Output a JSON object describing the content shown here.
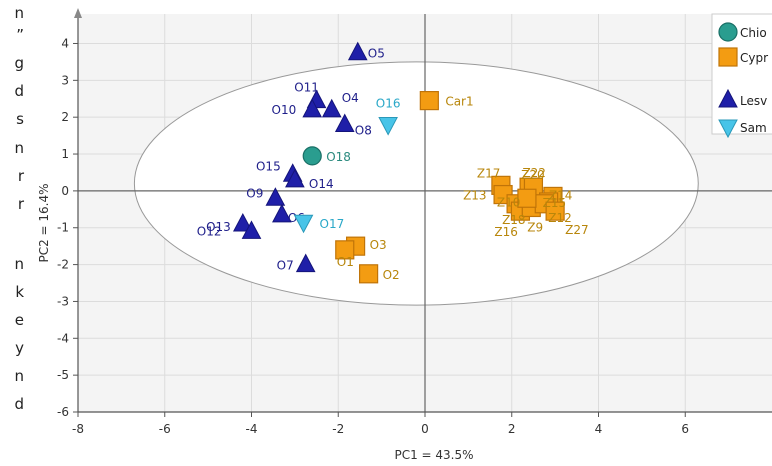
{
  "left_margin_text": [
    "n",
    "”",
    "g",
    "d",
    "s",
    "n",
    "r",
    "r",
    "n",
    "k",
    "e",
    "y",
    "n",
    "d"
  ],
  "chart_data": {
    "type": "scatter",
    "xlabel": "PC1 = 43.5%",
    "ylabel": "PC2 = 16.4%",
    "xlim": [
      -8,
      8
    ],
    "ylim": [
      -6,
      4.8
    ],
    "xticks": [
      -8,
      -6,
      -4,
      -2,
      0,
      2,
      4,
      6
    ],
    "yticks": [
      -6,
      -5,
      -4,
      -3,
      -2,
      -1,
      0,
      1,
      2,
      3,
      4
    ],
    "grid": true,
    "ellipse": {
      "cx": -0.2,
      "cy": 0.2,
      "rx": 6.5,
      "ry": 3.3
    },
    "legend": {
      "position": "top-right",
      "entries": [
        "Chio",
        "Cypr",
        "Lesv",
        "Sam"
      ]
    },
    "series": [
      {
        "name": "Chio",
        "marker": "circle",
        "color": "#2a9d8f",
        "label_color": "#2a8a7e",
        "points": [
          {
            "label": "O18",
            "x": -2.6,
            "y": 0.95
          }
        ]
      },
      {
        "name": "Cypr",
        "marker": "square",
        "color": "#f39c12",
        "label_color": "#b8860b",
        "points": [
          {
            "label": "Car1",
            "x": 0.1,
            "y": 2.45
          },
          {
            "label": "O3",
            "x": -1.6,
            "y": -1.5
          },
          {
            "label": "O1",
            "x": -1.85,
            "y": -1.6
          },
          {
            "label": "O2",
            "x": -1.3,
            "y": -2.25
          },
          {
            "label": "Z17",
            "x": 1.75,
            "y": 0.15
          },
          {
            "label": "Z20",
            "x": 2.4,
            "y": 0.1
          },
          {
            "label": "Z22",
            "x": 2.5,
            "y": 0.1
          },
          {
            "label": "Z14",
            "x": 2.95,
            "y": -0.15
          },
          {
            "label": "Z15",
            "x": 2.85,
            "y": -0.3
          },
          {
            "label": "Z13",
            "x": 1.8,
            "y": -0.1
          },
          {
            "label": "Z18",
            "x": 2.1,
            "y": -0.35
          },
          {
            "label": "Z16",
            "x": 2.2,
            "y": -0.55
          },
          {
            "label": "Z9",
            "x": 2.45,
            "y": -0.45
          },
          {
            "label": "Z12",
            "x": 2.75,
            "y": -0.35
          },
          {
            "label": "Z27",
            "x": 3.0,
            "y": -0.55
          },
          {
            "label": "Z10",
            "x": 2.35,
            "y": -0.2
          }
        ]
      },
      {
        "name": "Lesv",
        "marker": "triangle-up",
        "color": "#1f1fa8",
        "label_color": "#1f1f8a",
        "points": [
          {
            "label": "O5",
            "x": -1.55,
            "y": 3.75
          },
          {
            "label": "O11",
            "x": -2.5,
            "y": 2.45
          },
          {
            "label": "O4",
            "x": -2.15,
            "y": 2.2
          },
          {
            "label": "O10",
            "x": -2.6,
            "y": 2.2
          },
          {
            "label": "O8",
            "x": -1.85,
            "y": 1.8
          },
          {
            "label": "O15",
            "x": -3.05,
            "y": 0.45
          },
          {
            "label": "O14",
            "x": -3.0,
            "y": 0.3
          },
          {
            "label": "O9",
            "x": -3.45,
            "y": -0.2
          },
          {
            "label": "O6",
            "x": -3.3,
            "y": -0.65
          },
          {
            "label": "O13",
            "x": -4.2,
            "y": -0.9
          },
          {
            "label": "O12",
            "x": -4.0,
            "y": -1.1
          },
          {
            "label": "O7",
            "x": -2.75,
            "y": -2.0
          }
        ]
      },
      {
        "name": "Sam",
        "marker": "triangle-down",
        "color": "#48c4e8",
        "label_color": "#2aa8c8",
        "points": [
          {
            "label": "O16",
            "x": -0.85,
            "y": 1.8
          },
          {
            "label": "O17",
            "x": -2.8,
            "y": -0.85
          }
        ]
      }
    ]
  }
}
